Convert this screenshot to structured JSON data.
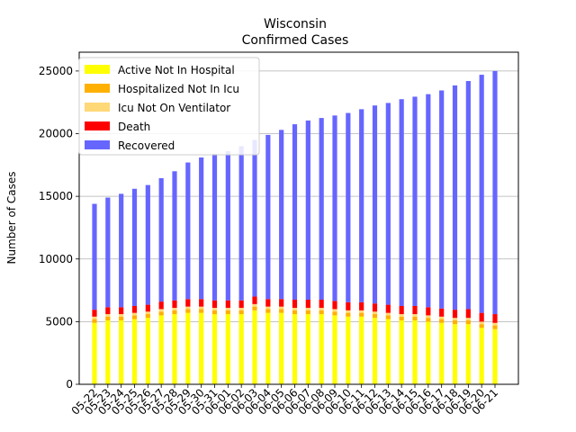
{
  "chart_data": {
    "type": "bar",
    "title": "Wisconsin",
    "subtitle": "Confirmed Cases",
    "xlabel": "",
    "ylabel": "Number of Cases",
    "ylim": [
      0,
      26500
    ],
    "yticks": [
      0,
      5000,
      10000,
      15000,
      20000,
      25000
    ],
    "grid": "horizontal",
    "legend_position": "top-left",
    "stacked": true,
    "categories": [
      "05-22",
      "05-23",
      "05-24",
      "05-25",
      "05-26",
      "05-27",
      "05-28",
      "05-29",
      "05-30",
      "05-31",
      "06-01",
      "06-02",
      "06-03",
      "06-04",
      "06-05",
      "06-06",
      "06-07",
      "06-08",
      "06-09",
      "06-10",
      "06-11",
      "06-12",
      "06-13",
      "06-14",
      "06-15",
      "06-16",
      "06-17",
      "06-18",
      "06-19",
      "06-20",
      "06-21"
    ],
    "series": [
      {
        "name": "Active Not In Hospital",
        "color": "#ffff00",
        "values": [
          4900,
          5100,
          5100,
          5200,
          5300,
          5500,
          5600,
          5700,
          5700,
          5600,
          5600,
          5600,
          5900,
          5700,
          5700,
          5600,
          5600,
          5600,
          5500,
          5400,
          5400,
          5300,
          5200,
          5100,
          5100,
          5000,
          4900,
          4800,
          4800,
          4500,
          4400
        ]
      },
      {
        "name": "Hospitalized Not In Icu",
        "color": "#ffb000",
        "values": [
          300,
          300,
          300,
          300,
          300,
          300,
          300,
          300,
          300,
          300,
          300,
          300,
          300,
          300,
          300,
          300,
          300,
          300,
          300,
          300,
          300,
          300,
          300,
          300,
          300,
          300,
          300,
          300,
          300,
          300,
          300
        ]
      },
      {
        "name": "Icu Not On Ventilator",
        "color": "#ffd878",
        "values": [
          200,
          200,
          200,
          200,
          200,
          200,
          200,
          200,
          200,
          200,
          200,
          200,
          200,
          200,
          200,
          200,
          200,
          200,
          200,
          200,
          200,
          200,
          200,
          200,
          200,
          200,
          200,
          200,
          200,
          200,
          200
        ]
      },
      {
        "name": "Death",
        "color": "#ff0000",
        "values": [
          550,
          550,
          550,
          550,
          550,
          600,
          600,
          600,
          600,
          600,
          600,
          600,
          600,
          600,
          600,
          650,
          650,
          650,
          650,
          650,
          650,
          650,
          650,
          650,
          650,
          650,
          650,
          650,
          700,
          700,
          700
        ]
      },
      {
        "name": "Recovered",
        "color": "#6666ff",
        "values": [
          8450,
          8750,
          9050,
          9350,
          9550,
          9850,
          10300,
          10900,
          11300,
          11700,
          11900,
          12300,
          12500,
          13100,
          13500,
          14000,
          14300,
          14500,
          14800,
          15100,
          15400,
          15800,
          16100,
          16500,
          16700,
          17000,
          17400,
          17900,
          18200,
          19000,
          19400
        ]
      }
    ]
  }
}
